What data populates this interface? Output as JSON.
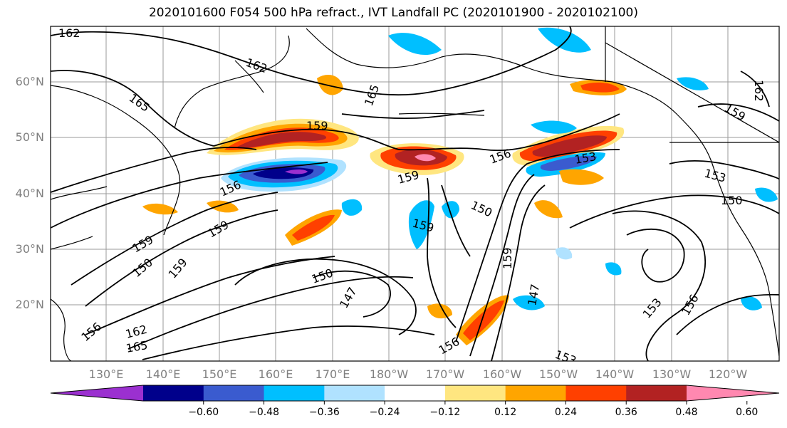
{
  "title": "2020101600 F054 500 hPa refract., IVT Landfall PC (2020101900 - 2020102100)",
  "map": {
    "lat_labels": [
      "60°N",
      "50°N",
      "40°N",
      "30°N",
      "20°N"
    ],
    "lon_labels": [
      "130°E",
      "140°E",
      "150°E",
      "160°E",
      "170°E",
      "180°W",
      "170°W",
      "160°W",
      "150°W",
      "140°W",
      "130°W",
      "120°W"
    ],
    "contour_labels": [
      "162",
      "165",
      "162",
      "165",
      "159",
      "159",
      "156",
      "153",
      "150",
      "150",
      "159",
      "156",
      "159",
      "159",
      "150",
      "147",
      "159",
      "162",
      "165",
      "156",
      "156",
      "159",
      "153",
      "156",
      "153",
      "159",
      "162",
      "153",
      "150",
      "147"
    ],
    "features": [
      "coastlines",
      "state-borders",
      "lat-lon-grid",
      "refractivity-contours",
      "ivt-pc-shading"
    ]
  },
  "colorbar": {
    "colors": [
      "#9b30d0",
      "#00008b",
      "#3a5bcf",
      "#00bfff",
      "#b0e2ff",
      "#ffffff",
      "#ffe680",
      "#ffa500",
      "#ff4000",
      "#b22222",
      "#ff88b0"
    ],
    "tick_labels": [
      "-0.60",
      "-0.48",
      "-0.36",
      "-0.24",
      "-0.12",
      "0.12",
      "0.24",
      "0.36",
      "0.48",
      "0.60"
    ],
    "ticks": [
      -0.6,
      -0.48,
      -0.36,
      -0.24,
      -0.12,
      0.12,
      0.24,
      0.36,
      0.48,
      0.6
    ]
  }
}
